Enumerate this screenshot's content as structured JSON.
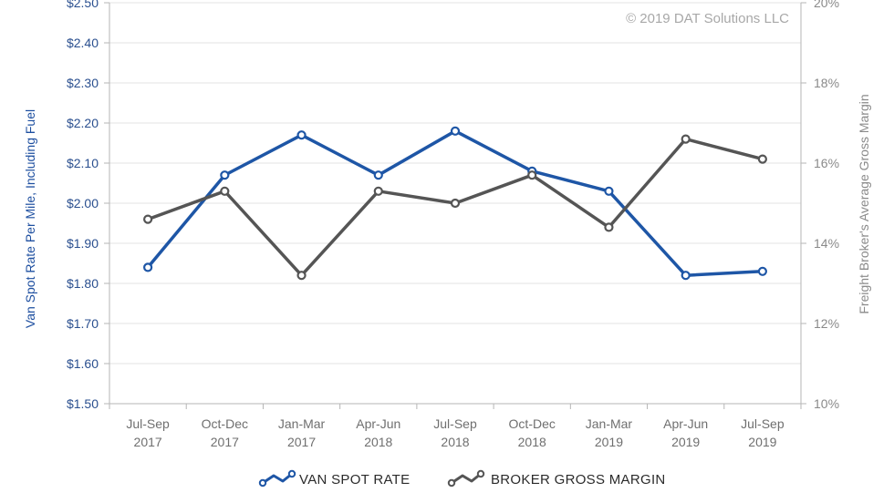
{
  "chart_data": {
    "type": "line",
    "categories": [
      [
        "Jul-Sep",
        "2017"
      ],
      [
        "Oct-Dec",
        "2017"
      ],
      [
        "Jan-Mar",
        "2017"
      ],
      [
        "Apr-Jun",
        "2018"
      ],
      [
        "Jul-Sep",
        "2018"
      ],
      [
        "Oct-Dec",
        "2018"
      ],
      [
        "Jan-Mar",
        "2019"
      ],
      [
        "Apr-Jun",
        "2019"
      ],
      [
        "Jul-Sep",
        "2019"
      ]
    ],
    "series": [
      {
        "name": "VAN SPOT RATE",
        "axis": "left",
        "color": "#1e56a6",
        "values": [
          1.84,
          2.07,
          2.17,
          2.07,
          2.18,
          2.08,
          2.03,
          1.82,
          1.83
        ]
      },
      {
        "name": "BROKER GROSS MARGIN",
        "axis": "right",
        "color": "#555555",
        "values": [
          14.6,
          15.3,
          13.2,
          15.3,
          15.0,
          15.7,
          14.4,
          16.6,
          16.1
        ]
      }
    ],
    "ylabel": "Van Spot Rate Per Mile, Including Fuel",
    "y2label": "Freight Broker's Average Gross Margin",
    "ylim": [
      1.5,
      2.5
    ],
    "y2lim": [
      10,
      20
    ],
    "yticks": [
      "$1.50",
      "$1.60",
      "$1.70",
      "$1.80",
      "$1.90",
      "$2.00",
      "$2.10",
      "$2.20",
      "$2.30",
      "$2.40",
      "$2.50"
    ],
    "y2ticks": [
      "10%",
      "12%",
      "14%",
      "16%",
      "18%",
      "20%"
    ],
    "grid": true,
    "legend": "bottom-center",
    "annotation": "© 2019 DAT Solutions LLC"
  }
}
